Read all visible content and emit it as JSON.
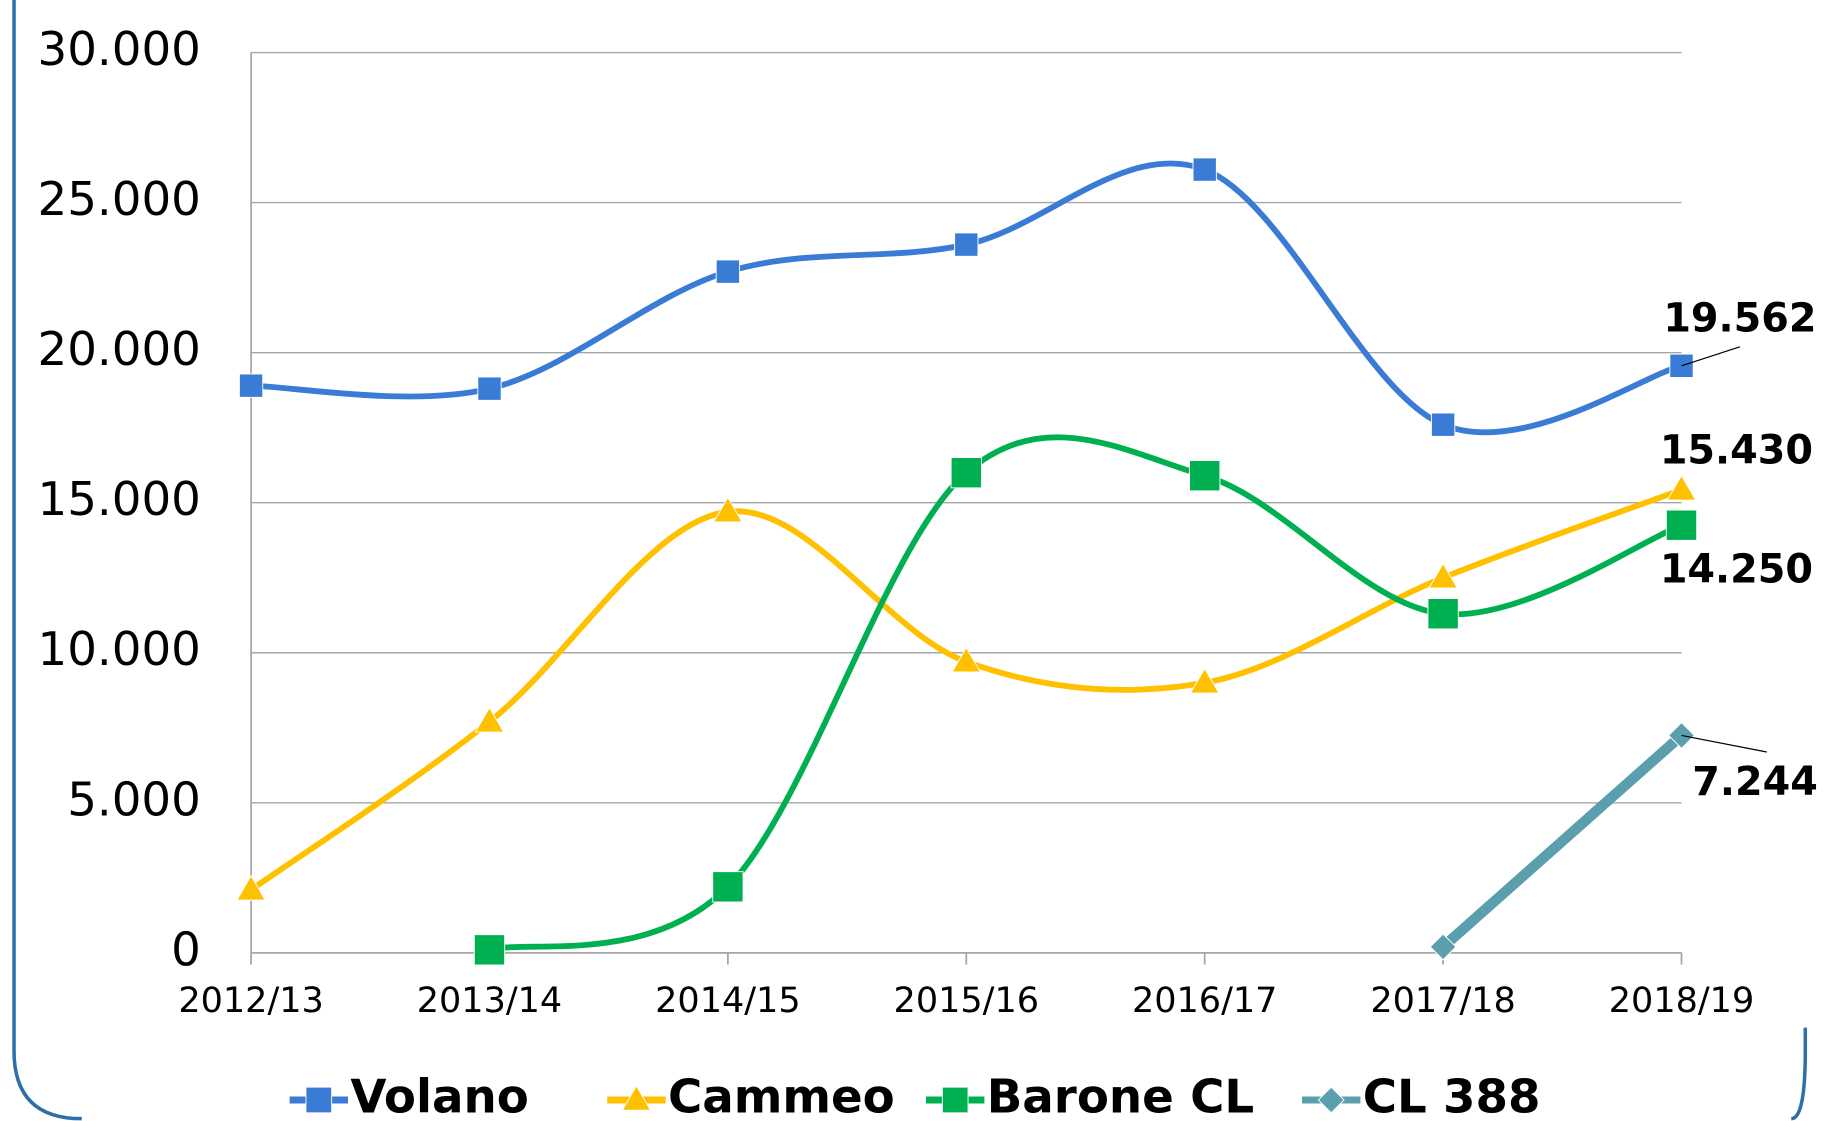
{
  "chart_data": {
    "type": "line",
    "categories": [
      "2012/13",
      "2013/14",
      "2014/15",
      "2015/16",
      "2016/17",
      "2017/18",
      "2018/19"
    ],
    "ylim": [
      0,
      30000
    ],
    "yticks": [
      0,
      {
        "value": 5000,
        "label": "5.000"
      },
      {
        "value": 10000,
        "label": "10.000"
      },
      {
        "value": 15000,
        "label": "15.000"
      },
      {
        "value": 20000,
        "label": "20.000"
      },
      {
        "value": 25000,
        "label": "25.000"
      },
      {
        "value": 30000,
        "label": "30.000"
      }
    ],
    "grid": true,
    "legend": "bottom",
    "series": [
      {
        "name": "Volano",
        "color": "#3a7bd5",
        "marker": "square",
        "smooth": true,
        "values": [
          18900,
          18800,
          22700,
          23600,
          26100,
          17600,
          19562
        ],
        "value_labels": [
          null,
          null,
          null,
          null,
          null,
          null,
          "19.562"
        ]
      },
      {
        "name": "Cammeo",
        "color": "#ffc000",
        "marker": "triangle",
        "smooth": true,
        "values": [
          2100,
          7700,
          14700,
          9700,
          9000,
          12500,
          15430
        ],
        "value_labels": [
          null,
          null,
          null,
          null,
          null,
          null,
          "15.430"
        ]
      },
      {
        "name": "Barone CL",
        "color": "#00b050",
        "marker": "square",
        "smooth": true,
        "values": [
          null,
          100,
          2200,
          16000,
          15900,
          11300,
          14250
        ],
        "value_labels": [
          null,
          null,
          null,
          null,
          null,
          null,
          "14.250"
        ]
      },
      {
        "name": "CL 388",
        "color": "#5b9faf",
        "marker": "diamond",
        "smooth": false,
        "values": [
          null,
          null,
          null,
          null,
          null,
          200,
          7244
        ],
        "value_labels": [
          null,
          null,
          null,
          null,
          null,
          null,
          "7.244"
        ]
      }
    ]
  }
}
